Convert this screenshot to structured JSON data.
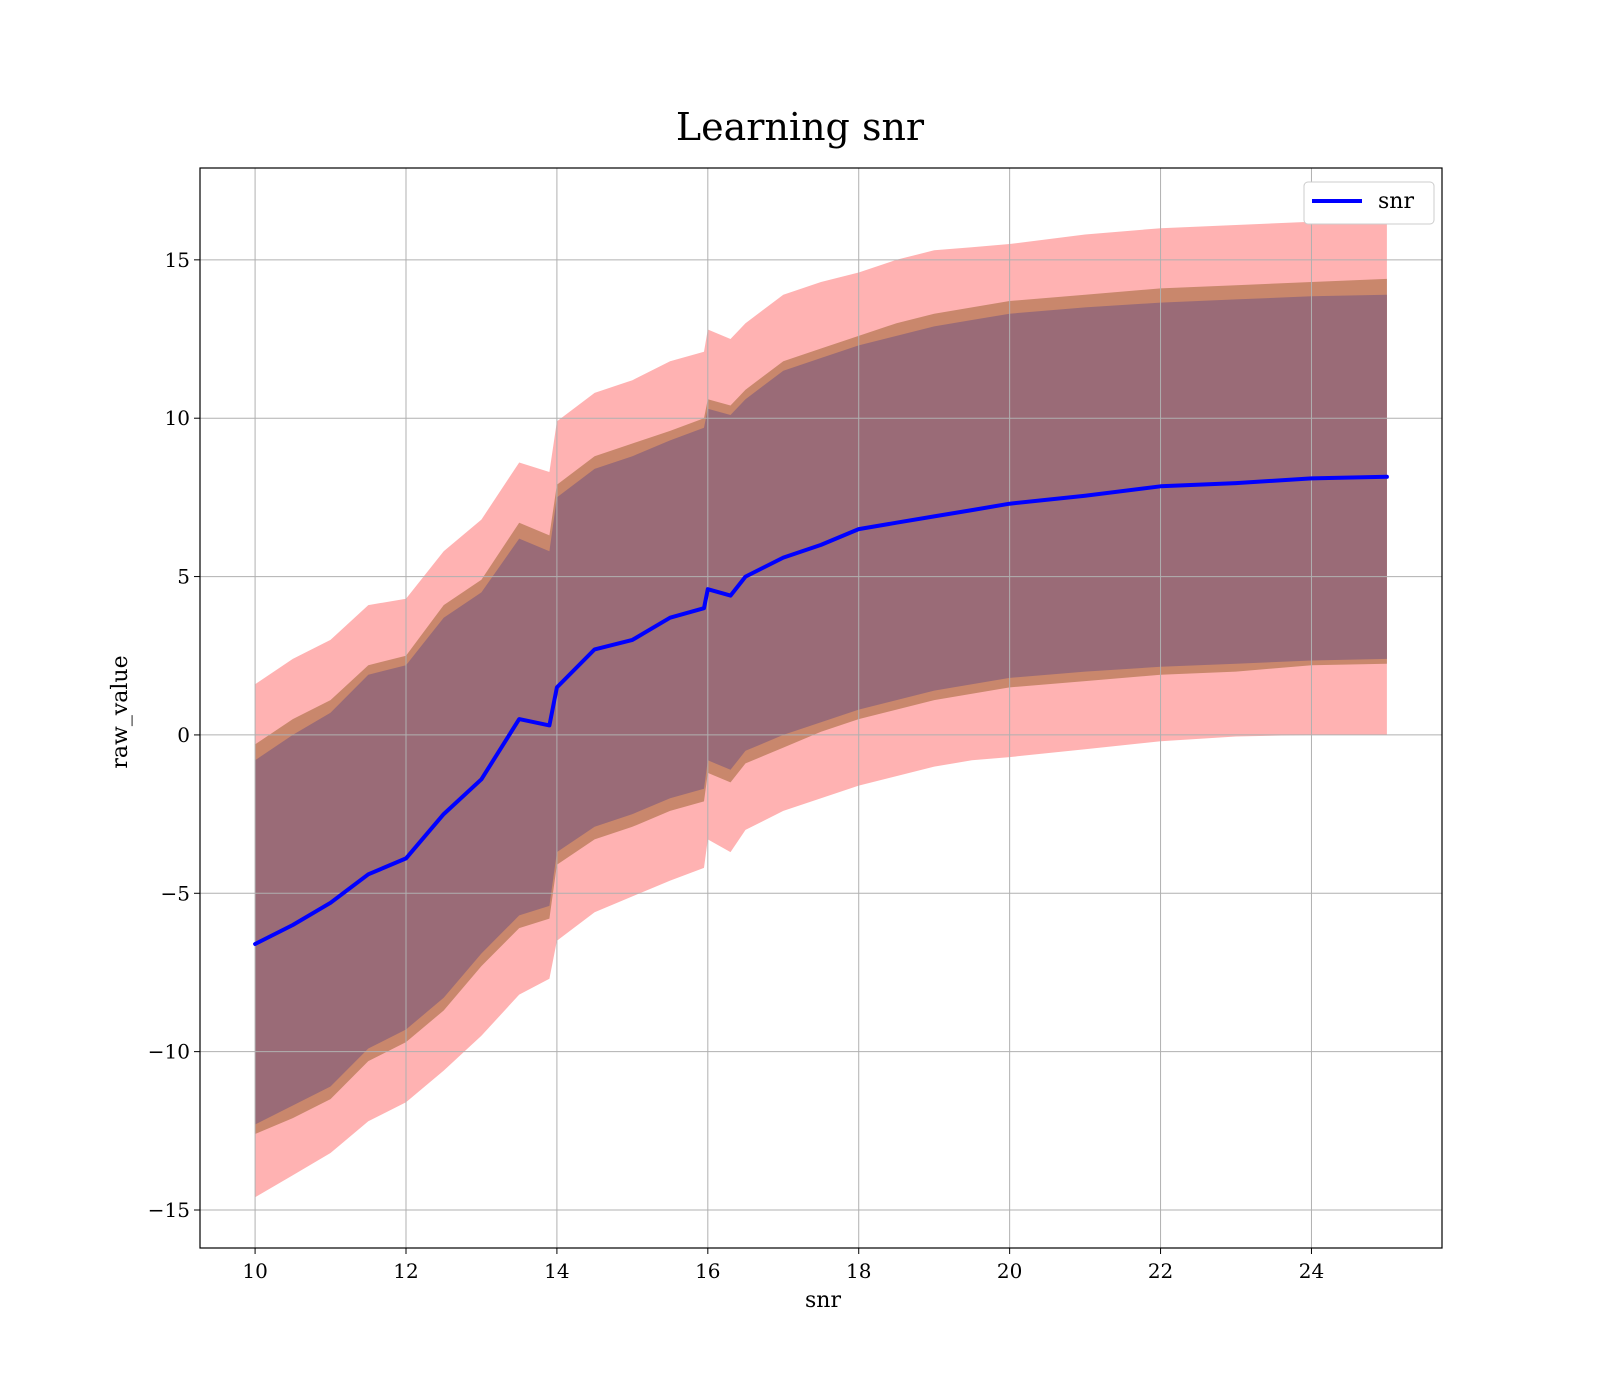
{
  "chart_data": {
    "type": "line",
    "title": "Learning snr",
    "xlabel": "snr",
    "ylabel": "raw_value",
    "xlim": [
      9.27,
      25.73
    ],
    "ylim": [
      -16.2,
      17.9
    ],
    "xticks": [
      10,
      12,
      14,
      16,
      18,
      20,
      22,
      24
    ],
    "xtick_labels": [
      "10",
      "12",
      "14",
      "16",
      "18",
      "20",
      "22",
      "24"
    ],
    "yticks": [
      -15,
      -10,
      -5,
      0,
      5,
      10,
      15
    ],
    "ytick_labels": [
      "−15",
      "−10",
      "−5",
      "0",
      "5",
      "10",
      "15"
    ],
    "grid": true,
    "legend": {
      "position": "top-right",
      "entries": [
        "snr"
      ]
    },
    "x": [
      10.0,
      10.5,
      11.0,
      11.5,
      12.0,
      12.5,
      13.0,
      13.5,
      13.9,
      14.0,
      14.5,
      15.0,
      15.5,
      15.95,
      16.0,
      16.3,
      16.5,
      17.0,
      17.5,
      18.0,
      18.5,
      19.0,
      19.5,
      20.0,
      21.0,
      22.0,
      23.0,
      24.0,
      25.0
    ],
    "series": [
      {
        "name": "snr",
        "color": "#0000ff",
        "values": [
          -6.6,
          -6.0,
          -5.3,
          -4.4,
          -3.9,
          -2.5,
          -1.4,
          0.5,
          0.3,
          1.5,
          2.7,
          3.0,
          3.7,
          4.0,
          4.6,
          4.4,
          5.0,
          5.6,
          6.0,
          6.5,
          6.7,
          6.9,
          7.1,
          7.3,
          7.55,
          7.85,
          7.95,
          8.1,
          8.15
        ]
      }
    ],
    "bands": [
      {
        "color": "#ff6666",
        "opacity": 0.5,
        "upper": [
          1.6,
          2.4,
          3.0,
          4.1,
          4.3,
          5.8,
          6.8,
          8.6,
          8.3,
          9.9,
          10.8,
          11.2,
          11.8,
          12.1,
          12.8,
          12.5,
          13.0,
          13.9,
          14.3,
          14.6,
          15.0,
          15.3,
          15.4,
          15.5,
          15.8,
          16.0,
          16.1,
          16.2,
          16.25
        ],
        "lower": [
          -14.6,
          -13.9,
          -13.2,
          -12.2,
          -11.6,
          -10.6,
          -9.5,
          -8.2,
          -7.7,
          -6.5,
          -5.6,
          -5.1,
          -4.6,
          -4.2,
          -3.3,
          -3.7,
          -3.0,
          -2.4,
          -2.0,
          -1.6,
          -1.3,
          -1.0,
          -0.8,
          -0.7,
          -0.45,
          -0.2,
          -0.05,
          0.0,
          0.0
        ]
      },
      {
        "color": "#bf7f5f",
        "opacity": 0.85,
        "upper": [
          -0.3,
          0.5,
          1.1,
          2.2,
          2.5,
          4.1,
          4.9,
          6.7,
          6.3,
          7.9,
          8.8,
          9.2,
          9.6,
          10.0,
          10.6,
          10.4,
          10.9,
          11.8,
          12.2,
          12.6,
          13.0,
          13.3,
          13.5,
          13.7,
          13.9,
          14.1,
          14.2,
          14.3,
          14.4
        ],
        "lower": [
          -12.6,
          -12.1,
          -11.5,
          -10.3,
          -9.7,
          -8.7,
          -7.3,
          -6.1,
          -5.8,
          -4.1,
          -3.3,
          -2.9,
          -2.4,
          -2.1,
          -1.2,
          -1.5,
          -0.9,
          -0.4,
          0.1,
          0.5,
          0.8,
          1.1,
          1.3,
          1.5,
          1.7,
          1.9,
          2.0,
          2.2,
          2.25
        ]
      },
      {
        "color": "#9a6b77",
        "opacity": 1.0,
        "upper": [
          -0.8,
          0.0,
          0.7,
          1.9,
          2.2,
          3.7,
          4.5,
          6.2,
          5.8,
          7.5,
          8.4,
          8.8,
          9.3,
          9.7,
          10.3,
          10.1,
          10.6,
          11.5,
          11.9,
          12.3,
          12.6,
          12.9,
          13.1,
          13.3,
          13.5,
          13.65,
          13.75,
          13.85,
          13.9
        ],
        "lower": [
          -12.3,
          -11.7,
          -11.1,
          -9.9,
          -9.3,
          -8.3,
          -6.9,
          -5.7,
          -5.4,
          -3.7,
          -2.9,
          -2.5,
          -2.0,
          -1.7,
          -0.8,
          -1.1,
          -0.5,
          0.0,
          0.4,
          0.8,
          1.1,
          1.4,
          1.6,
          1.8,
          2.0,
          2.15,
          2.25,
          2.35,
          2.4
        ]
      }
    ]
  }
}
